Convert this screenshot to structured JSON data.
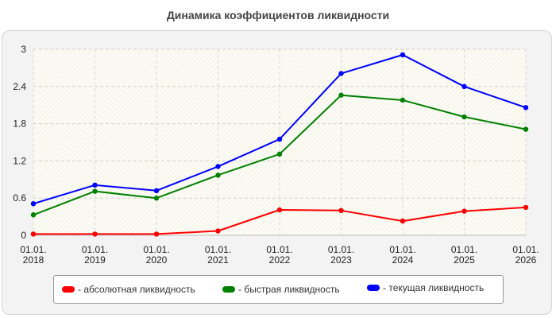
{
  "chart_data": {
    "type": "line",
    "title": "Динамика коэффициентов ликвидности",
    "categories": [
      [
        "01.01.",
        "2018"
      ],
      [
        "01.01.",
        "2019"
      ],
      [
        "01.01.",
        "2020"
      ],
      [
        "01.01.",
        "2021"
      ],
      [
        "01.01.",
        "2022"
      ],
      [
        "01.01.",
        "2023"
      ],
      [
        "01.01.",
        "2024"
      ],
      [
        "01.01.",
        "2025"
      ],
      [
        "01.01.",
        "2026"
      ]
    ],
    "ylim": [
      0,
      3
    ],
    "yticks": [
      "0",
      "0.6",
      "1.2",
      "1.8",
      "2.4",
      "3"
    ],
    "ytick_values": [
      0,
      0.6,
      1.2,
      1.8,
      2.4,
      3
    ],
    "grid": true,
    "legend_position": "bottom",
    "series": [
      {
        "name": "- абсолютная ликвидность",
        "color": "#ff0000",
        "values": [
          0.02,
          0.02,
          0.02,
          0.07,
          0.41,
          0.4,
          0.23,
          0.39,
          0.45
        ]
      },
      {
        "name": "- быстрая ликвидность",
        "color": "#008000",
        "values": [
          0.33,
          0.71,
          0.6,
          0.97,
          1.31,
          2.26,
          2.18,
          1.91,
          1.71
        ]
      },
      {
        "name": "- текущая ликвидность",
        "color": "#0000ff",
        "values": [
          0.51,
          0.81,
          0.72,
          1.11,
          1.55,
          2.61,
          2.91,
          2.4,
          2.06
        ]
      }
    ]
  }
}
